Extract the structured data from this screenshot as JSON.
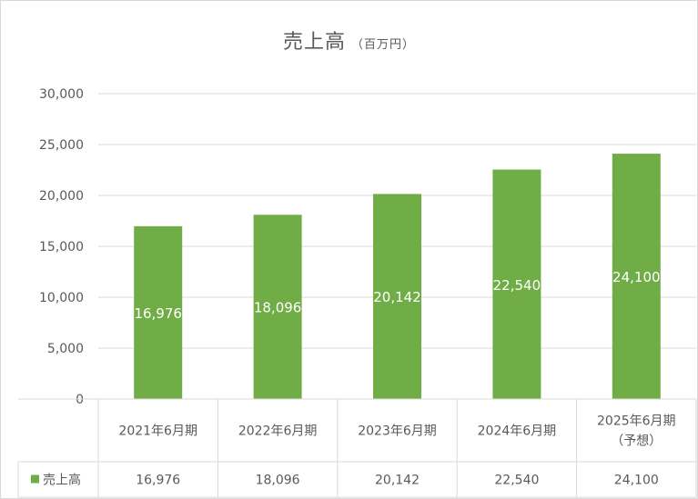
{
  "chart_data": {
    "type": "bar",
    "title": "売上高",
    "title_unit": "（百万円）",
    "categories": [
      [
        "2021年6月期"
      ],
      [
        "2022年6月期"
      ],
      [
        "2023年6月期"
      ],
      [
        "2024年6月期"
      ],
      [
        "2025年6月期",
        "（予想）"
      ]
    ],
    "series": [
      {
        "name": "売上高",
        "values": [
          16976,
          18096,
          20142,
          22540,
          24100
        ],
        "value_labels": [
          "16,976",
          "18,096",
          "20,142",
          "22,540",
          "24,100"
        ],
        "color": "#70ad47"
      }
    ],
    "yticks": [
      "0",
      "5,000",
      "10,000",
      "15,000",
      "20,000",
      "25,000",
      "30,000"
    ],
    "ylim": [
      0,
      30000
    ],
    "grid": true,
    "legend": "data-table"
  }
}
